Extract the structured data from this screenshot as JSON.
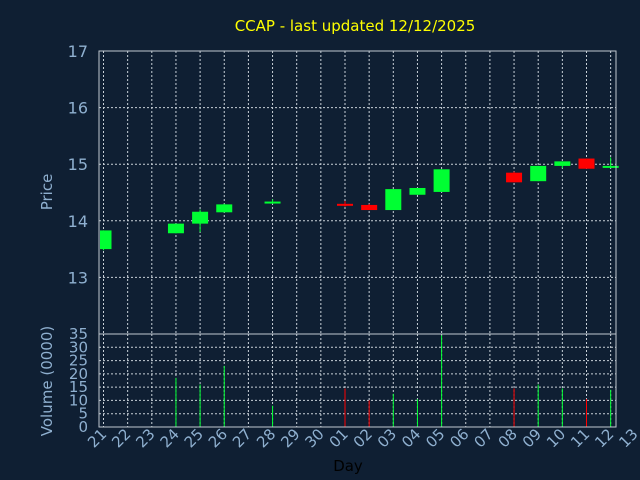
{
  "chart_data": [
    {
      "type": "candlestick",
      "title": "CCAP - last updated 12/12/2025",
      "ylabel": "Price",
      "ylim": [
        12.0,
        17.0
      ],
      "yticks": [
        13,
        14,
        15,
        16,
        17
      ],
      "grid": true,
      "candles": [
        {
          "day": "21",
          "open": 13.5,
          "close": 13.83,
          "high": 13.83,
          "low": 13.48,
          "color": "up"
        },
        {
          "day": "24",
          "open": 13.78,
          "close": 13.95,
          "high": 13.95,
          "low": 13.78,
          "color": "up"
        },
        {
          "day": "25",
          "open": 13.95,
          "close": 14.16,
          "high": 14.2,
          "low": 13.8,
          "color": "up"
        },
        {
          "day": "26",
          "open": 14.15,
          "close": 14.29,
          "high": 14.3,
          "low": 14.15,
          "color": "up"
        },
        {
          "day": "28",
          "open": 14.33,
          "close": 14.34,
          "high": 14.38,
          "low": 14.3,
          "color": "up"
        },
        {
          "day": "01",
          "open": 14.3,
          "close": 14.29,
          "high": 14.35,
          "low": 14.25,
          "color": "down"
        },
        {
          "day": "02",
          "open": 14.28,
          "close": 14.19,
          "high": 14.3,
          "low": 14.19,
          "color": "down"
        },
        {
          "day": "03",
          "open": 14.19,
          "close": 14.56,
          "high": 14.56,
          "low": 14.19,
          "color": "up"
        },
        {
          "day": "04",
          "open": 14.46,
          "close": 14.58,
          "high": 14.58,
          "low": 14.46,
          "color": "up"
        },
        {
          "day": "05",
          "open": 14.51,
          "close": 14.91,
          "high": 14.91,
          "low": 14.51,
          "color": "up"
        },
        {
          "day": "08",
          "open": 14.85,
          "close": 14.68,
          "high": 14.87,
          "low": 14.68,
          "color": "down"
        },
        {
          "day": "09",
          "open": 14.7,
          "close": 14.97,
          "high": 14.97,
          "low": 14.7,
          "color": "up"
        },
        {
          "day": "10",
          "open": 14.97,
          "close": 15.05,
          "high": 15.05,
          "low": 14.93,
          "color": "up"
        },
        {
          "day": "11",
          "open": 15.1,
          "close": 14.92,
          "high": 15.1,
          "low": 14.92,
          "color": "down"
        },
        {
          "day": "12",
          "open": 14.94,
          "close": 14.97,
          "high": 15.12,
          "low": 14.93,
          "color": "up"
        }
      ],
      "colors": {
        "up": "#00ff33",
        "down": "#ff0000"
      }
    },
    {
      "type": "bar",
      "ylabel": "Volume (0000)",
      "ylim": [
        0,
        35
      ],
      "yticks": [
        0,
        5,
        10,
        15,
        20,
        25,
        30,
        35
      ],
      "grid": true,
      "xlabel": "Day",
      "categories": [
        "21",
        "22",
        "23",
        "24",
        "25",
        "26",
        "27",
        "28",
        "29",
        "30",
        "01",
        "02",
        "03",
        "04",
        "05",
        "06",
        "07",
        "08",
        "09",
        "10",
        "11",
        "12",
        "13"
      ],
      "values": [
        {
          "day": "24",
          "value": 18.5,
          "color": "up"
        },
        {
          "day": "25",
          "value": 16,
          "color": "up"
        },
        {
          "day": "26",
          "value": 23,
          "color": "up"
        },
        {
          "day": "28",
          "value": 8,
          "color": "up"
        },
        {
          "day": "01",
          "value": 14.5,
          "color": "down"
        },
        {
          "day": "02",
          "value": 10,
          "color": "down"
        },
        {
          "day": "03",
          "value": 12.5,
          "color": "up"
        },
        {
          "day": "04",
          "value": 10.5,
          "color": "up"
        },
        {
          "day": "05",
          "value": 34.5,
          "color": "up"
        },
        {
          "day": "08",
          "value": 14.5,
          "color": "down"
        },
        {
          "day": "09",
          "value": 16,
          "color": "up"
        },
        {
          "day": "10",
          "value": 14.5,
          "color": "up"
        },
        {
          "day": "11",
          "value": 10.5,
          "color": "down"
        },
        {
          "day": "12",
          "value": 14,
          "color": "up"
        }
      ]
    }
  ]
}
